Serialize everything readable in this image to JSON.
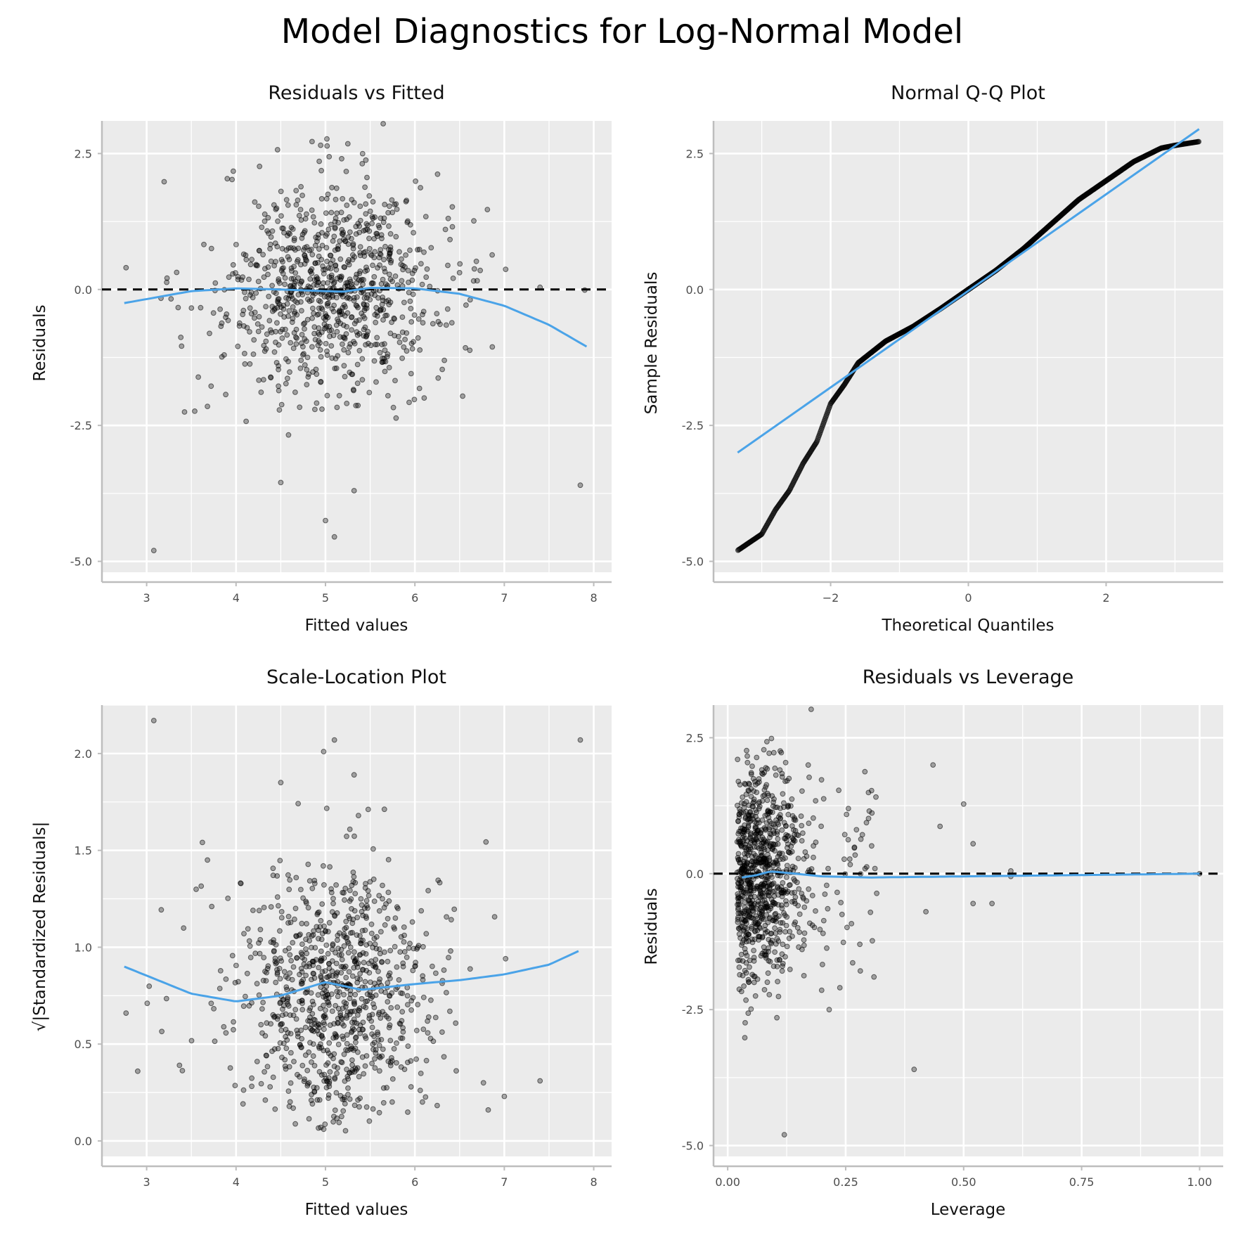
{
  "figure": {
    "title": "Model Diagnostics for Log-Normal Model",
    "colors": {
      "panel_background": "#ebebeb",
      "grid": "#ffffff",
      "points": "#000000",
      "smooth_line": "#4aa3e8",
      "reference_line": "#000000"
    }
  },
  "chart_data": [
    {
      "id": "residuals_vs_fitted",
      "type": "scatter",
      "title": "Residuals vs Fitted",
      "xlabel": "Fitted values",
      "ylabel": "Residuals",
      "xlim": [
        2.5,
        8.2
      ],
      "ylim": [
        -5.2,
        3.1
      ],
      "xticks": [
        3,
        4,
        5,
        6,
        7,
        8
      ],
      "xtick_labels": [
        "3",
        "4",
        "5",
        "6",
        "7",
        "8"
      ],
      "yticks": [
        -5.0,
        -2.5,
        0.0,
        2.5
      ],
      "ytick_labels": [
        "-5.0",
        "-2.5",
        "0.0",
        "2.5"
      ],
      "grid": true,
      "reference_line": {
        "y": 0,
        "style": "dashed"
      },
      "smooth_line": {
        "x": [
          2.75,
          3.5,
          4.0,
          4.5,
          5.0,
          5.2,
          5.5,
          6.0,
          6.5,
          7.0,
          7.5,
          7.92
        ],
        "y": [
          -0.25,
          -0.03,
          0.02,
          0.0,
          -0.03,
          -0.04,
          0.03,
          0.02,
          -0.08,
          -0.3,
          -0.65,
          -1.05
        ]
      },
      "highlighted_points": [
        {
          "x": 3.08,
          "y": -4.8
        },
        {
          "x": 7.85,
          "y": -3.6
        },
        {
          "x": 5.1,
          "y": -4.55
        },
        {
          "x": 5.0,
          "y": -4.25
        },
        {
          "x": 5.32,
          "y": -3.7
        },
        {
          "x": 4.5,
          "y": -3.55
        },
        {
          "x": 3.68,
          "y": -2.15
        },
        {
          "x": 4.85,
          "y": 2.72
        },
        {
          "x": 5.25,
          "y": 2.68
        },
        {
          "x": 7.9,
          "y": -0.01
        },
        {
          "x": 7.4,
          "y": 0.04
        },
        {
          "x": 2.77,
          "y": 0.4
        }
      ],
      "generated_cloud": {
        "n": 900,
        "x_center": 5.1,
        "x_sd": 0.55,
        "y_center": 0.0,
        "y_sd": 0.98
      }
    },
    {
      "id": "normal_qq",
      "type": "scatter",
      "title": "Normal Q-Q Plot",
      "xlabel": "Theoretical Quantiles",
      "ylabel": "Sample Residuals",
      "xlim": [
        -3.7,
        3.7
      ],
      "ylim": [
        -5.2,
        3.1
      ],
      "xticks": [
        -2,
        0,
        2
      ],
      "xtick_labels": [
        "−2",
        "0",
        "2"
      ],
      "yticks": [
        -5.0,
        -2.5,
        0.0,
        2.5
      ],
      "ytick_labels": [
        "-5.0",
        "-2.5",
        "0.0",
        "2.5"
      ],
      "grid": true,
      "reference_line": {
        "x": [
          -3.35,
          3.35
        ],
        "y": [
          -3.0,
          2.95
        ]
      },
      "sample_curve": {
        "theoretical": [
          -3.35,
          -3.0,
          -2.8,
          -2.6,
          -2.4,
          -2.2,
          -2.0,
          -1.8,
          -1.6,
          -1.2,
          -0.8,
          -0.4,
          0.0,
          0.4,
          0.8,
          1.2,
          1.6,
          2.0,
          2.4,
          2.8,
          3.0,
          3.35
        ],
        "sample": [
          -4.8,
          -4.5,
          -4.05,
          -3.7,
          -3.2,
          -2.8,
          -2.1,
          -1.75,
          -1.35,
          -0.95,
          -0.68,
          -0.35,
          0.0,
          0.35,
          0.75,
          1.2,
          1.65,
          2.0,
          2.35,
          2.6,
          2.65,
          2.72
        ],
        "n": 1000
      }
    },
    {
      "id": "scale_location",
      "type": "scatter",
      "title": "Scale-Location Plot",
      "xlabel": "Fitted values",
      "ylabel": "√|Standardized Residuals|",
      "xlim": [
        2.5,
        8.2
      ],
      "ylim": [
        -0.08,
        2.25
      ],
      "xticks": [
        3,
        4,
        5,
        6,
        7,
        8
      ],
      "xtick_labels": [
        "3",
        "4",
        "5",
        "6",
        "7",
        "8"
      ],
      "yticks": [
        0.0,
        0.5,
        1.0,
        1.5,
        2.0
      ],
      "ytick_labels": [
        "0.0",
        "0.5",
        "1.0",
        "1.5",
        "2.0"
      ],
      "grid": true,
      "smooth_line": {
        "x": [
          2.75,
          3.5,
          4.0,
          4.5,
          5.0,
          5.4,
          6.0,
          6.5,
          7.0,
          7.5,
          7.83
        ],
        "y": [
          0.9,
          0.76,
          0.72,
          0.75,
          0.82,
          0.78,
          0.81,
          0.83,
          0.86,
          0.91,
          0.98
        ]
      },
      "highlighted_points": [
        {
          "x": 3.08,
          "y": 2.17
        },
        {
          "x": 7.85,
          "y": 2.07
        },
        {
          "x": 5.1,
          "y": 2.07
        },
        {
          "x": 4.98,
          "y": 2.01
        },
        {
          "x": 5.32,
          "y": 1.89
        },
        {
          "x": 4.5,
          "y": 1.85
        },
        {
          "x": 3.68,
          "y": 1.45
        },
        {
          "x": 7.4,
          "y": 0.31
        },
        {
          "x": 7.0,
          "y": 0.23
        },
        {
          "x": 6.82,
          "y": 0.16
        },
        {
          "x": 2.77,
          "y": 0.66
        },
        {
          "x": 2.9,
          "y": 0.36
        }
      ],
      "generated_cloud": {
        "n": 900,
        "x_center": 5.1,
        "x_sd": 0.55
      }
    },
    {
      "id": "residuals_vs_leverage",
      "type": "scatter",
      "title": "Residuals vs Leverage",
      "xlabel": "Leverage",
      "ylabel": "Residuals",
      "xlim": [
        -0.03,
        1.05
      ],
      "ylim": [
        -5.2,
        3.1
      ],
      "xticks": [
        0.0,
        0.25,
        0.5,
        0.75,
        1.0
      ],
      "xtick_labels": [
        "0.00",
        "0.25",
        "0.50",
        "0.75",
        "1.00"
      ],
      "yticks": [
        -5.0,
        -2.5,
        0.0,
        2.5
      ],
      "ytick_labels": [
        "-5.0",
        "-2.5",
        "0.0",
        "2.5"
      ],
      "grid": true,
      "reference_line": {
        "y": 0,
        "style": "dashed"
      },
      "smooth_line": {
        "x": [
          0.03,
          0.06,
          0.09,
          0.12,
          0.2,
          0.3,
          0.4,
          0.6,
          0.8,
          1.0
        ],
        "y": [
          -0.07,
          -0.03,
          0.04,
          0.02,
          -0.05,
          -0.07,
          -0.06,
          -0.04,
          -0.02,
          0.0
        ]
      },
      "highlighted_points": [
        {
          "x": 0.12,
          "y": -4.8
        },
        {
          "x": 0.395,
          "y": -3.6
        },
        {
          "x": 0.435,
          "y": 2.0
        },
        {
          "x": 0.45,
          "y": 0.87
        },
        {
          "x": 0.5,
          "y": 1.28
        },
        {
          "x": 0.52,
          "y": 0.55
        },
        {
          "x": 0.52,
          "y": -0.55
        },
        {
          "x": 0.56,
          "y": -0.55
        },
        {
          "x": 0.6,
          "y": 0.05
        },
        {
          "x": 0.6,
          "y": -0.05
        },
        {
          "x": 1.0,
          "y": 0.0
        },
        {
          "x": 0.42,
          "y": -0.7
        },
        {
          "x": 0.31,
          "y": -1.9
        },
        {
          "x": 0.28,
          "y": -1.3
        },
        {
          "x": 0.215,
          "y": -2.5
        },
        {
          "x": 0.3,
          "y": 1.15
        }
      ],
      "generated_cloud": {
        "n": 900,
        "x_center": 0.065,
        "x_sd": 0.04,
        "y_center": 0.0,
        "y_sd": 0.98
      }
    }
  ]
}
